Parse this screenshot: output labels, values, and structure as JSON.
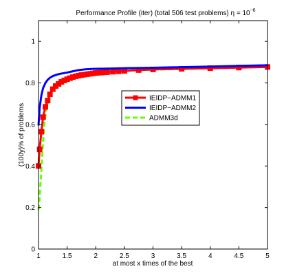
{
  "chart_data": {
    "type": "line",
    "title_main": "Performance Profile (iter) (total 506 test problems) η = 10",
    "title_sup": "−6",
    "xlabel": "at most x times of the best",
    "ylabel": "(100y)% of problems",
    "xlim": [
      1,
      5
    ],
    "ylim": [
      0,
      1.1
    ],
    "xticks": [
      1,
      1.5,
      2,
      2.5,
      3,
      3.5,
      4,
      4.5,
      5
    ],
    "xtick_labels": [
      "1",
      "1.5",
      "2",
      "2.5",
      "3",
      "3.5",
      "4",
      "4.5",
      "5"
    ],
    "yticks": [
      0,
      0.2,
      0.4,
      0.6,
      0.8,
      1
    ],
    "ytick_labels": [
      "0",
      "0.2",
      "0.4",
      "0.6",
      "0.8",
      "1"
    ],
    "grid": false,
    "legend_position": "center-right",
    "series": [
      {
        "name": "IEIDP−ADMM1",
        "color": "#ff0000",
        "style": "solid-square-markers",
        "x": [
          1,
          1.02,
          1.05,
          1.08,
          1.12,
          1.16,
          1.2,
          1.25,
          1.3,
          1.35,
          1.4,
          1.45,
          1.5,
          1.55,
          1.6,
          1.65,
          1.7,
          1.75,
          1.8,
          1.85,
          1.9,
          1.95,
          2.0,
          2.05,
          2.1,
          2.15,
          2.2,
          2.3,
          2.4,
          2.5,
          2.75,
          3.0,
          3.5,
          4.0,
          4.5,
          5.0
        ],
        "y": [
          0.4,
          0.48,
          0.565,
          0.635,
          0.685,
          0.715,
          0.745,
          0.77,
          0.785,
          0.795,
          0.805,
          0.812,
          0.818,
          0.823,
          0.828,
          0.832,
          0.835,
          0.838,
          0.84,
          0.842,
          0.844,
          0.846,
          0.848,
          0.849,
          0.85,
          0.851,
          0.852,
          0.854,
          0.856,
          0.858,
          0.862,
          0.865,
          0.868,
          0.871,
          0.874,
          0.877
        ]
      },
      {
        "name": "IEIDP−ADMM2",
        "color": "#0000ff",
        "style": "solid",
        "x": [
          1,
          1.02,
          1.05,
          1.08,
          1.12,
          1.16,
          1.2,
          1.25,
          1.3,
          1.35,
          1.4,
          1.5,
          1.6,
          1.7,
          1.8,
          1.9,
          2.0,
          2.2,
          2.5,
          3.0,
          3.5,
          4.0,
          4.5,
          5.0
        ],
        "y": [
          0.595,
          0.68,
          0.74,
          0.775,
          0.8,
          0.815,
          0.825,
          0.833,
          0.838,
          0.842,
          0.845,
          0.85,
          0.856,
          0.862,
          0.865,
          0.867,
          0.868,
          0.869,
          0.871,
          0.873,
          0.876,
          0.879,
          0.882,
          0.885
        ]
      },
      {
        "name": "ADMM3d",
        "color": "#66ff00",
        "style": "dashed",
        "x": [
          1,
          1.02,
          1.05,
          1.08,
          1.1,
          1.12,
          1.15,
          1.2,
          1.25,
          1.3,
          1.35,
          1.4,
          1.5,
          1.6,
          1.7,
          1.8,
          1.9,
          2.0,
          2.2,
          2.5,
          3.0,
          3.5,
          4.0,
          4.5,
          5.0
        ],
        "y": [
          0.19,
          0.25,
          0.38,
          0.52,
          0.6,
          0.64,
          0.69,
          0.74,
          0.77,
          0.79,
          0.8,
          0.81,
          0.822,
          0.832,
          0.84,
          0.845,
          0.849,
          0.852,
          0.856,
          0.86,
          0.864,
          0.867,
          0.871,
          0.874,
          0.877
        ]
      }
    ]
  }
}
